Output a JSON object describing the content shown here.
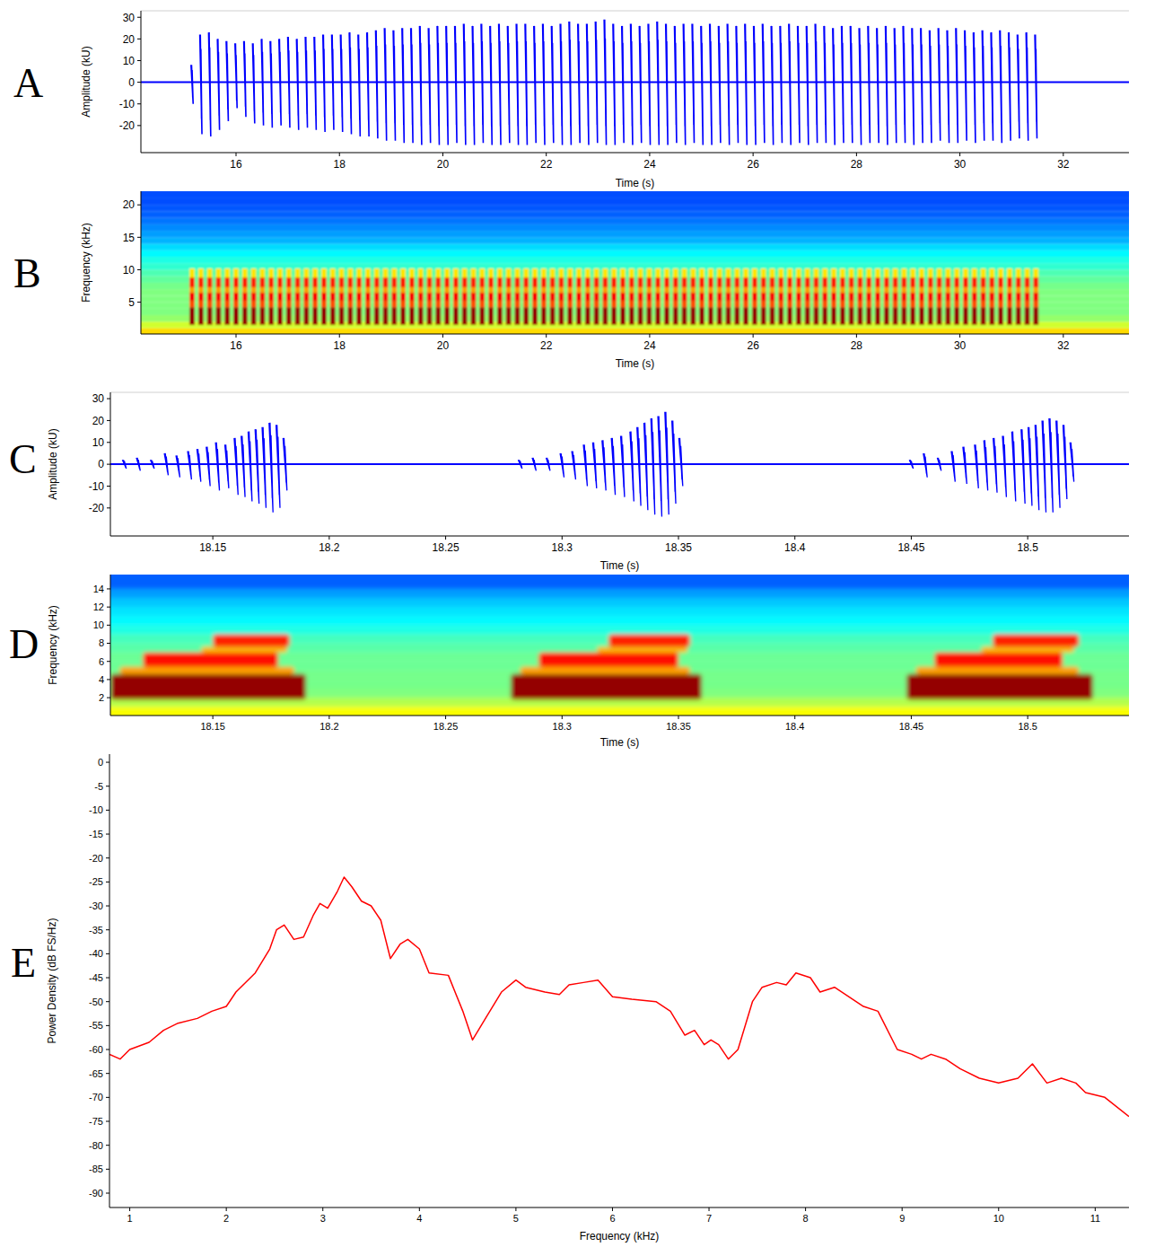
{
  "chart_data": [
    {
      "type": "waveform",
      "panel_label": "A",
      "x_label": "Time (s)",
      "y_label": "Amplitude (kU)",
      "color": "#0000ff",
      "xlim": [
        14.16,
        33.27
      ],
      "xticks": [
        16,
        18,
        20,
        22,
        24,
        26,
        28,
        30,
        32
      ],
      "ylim": [
        -32.5,
        33
      ],
      "yticks": [
        -20,
        -10,
        0,
        10,
        20,
        30
      ],
      "x": [
        15.15,
        15.32,
        15.49,
        15.66,
        15.83,
        16.0,
        16.17,
        16.34,
        16.51,
        16.68,
        16.85,
        17.02,
        17.19,
        17.36,
        17.53,
        17.7,
        17.87,
        18.04,
        18.21,
        18.38,
        18.55,
        18.72,
        18.89,
        19.06,
        19.23,
        19.4,
        19.57,
        19.74,
        19.91,
        20.08,
        20.25,
        20.42,
        20.59,
        20.76,
        20.93,
        21.1,
        21.27,
        21.44,
        21.61,
        21.78,
        21.95,
        22.12,
        22.29,
        22.46,
        22.63,
        22.8,
        22.97,
        23.14,
        23.31,
        23.48,
        23.65,
        23.82,
        23.99,
        24.16,
        24.33,
        24.5,
        24.67,
        24.84,
        25.01,
        25.18,
        25.35,
        25.52,
        25.69,
        25.86,
        26.03,
        26.2,
        26.37,
        26.54,
        26.71,
        26.88,
        27.05,
        27.22,
        27.39,
        27.56,
        27.73,
        27.9,
        28.07,
        28.24,
        28.41,
        28.58,
        28.75,
        28.92,
        29.09,
        29.26,
        29.43,
        29.6,
        29.77,
        29.94,
        30.11,
        30.28,
        30.45,
        30.62,
        30.79,
        30.96,
        31.13,
        31.3,
        31.47
      ],
      "max": [
        8,
        22,
        23,
        20,
        19,
        18,
        19,
        18,
        20,
        19,
        20,
        21,
        20,
        21,
        21,
        22,
        22,
        22,
        23,
        22,
        23,
        24,
        25,
        24,
        25,
        25,
        26,
        25,
        26,
        26,
        26,
        27,
        26,
        27,
        26,
        27,
        26,
        27,
        27,
        26,
        27,
        26,
        27,
        28,
        27,
        27,
        28,
        29,
        27,
        26,
        27,
        26,
        27,
        28,
        27,
        26,
        27,
        27,
        26,
        27,
        26,
        27,
        26,
        27,
        26,
        27,
        26,
        26,
        27,
        26,
        26,
        27,
        26,
        25,
        26,
        26,
        25,
        26,
        25,
        26,
        25,
        26,
        25,
        25,
        24,
        25,
        24,
        25,
        24,
        23,
        24,
        23,
        24,
        23,
        22,
        23,
        22
      ],
      "min": [
        -10,
        -24,
        -25,
        -22,
        -18,
        -12,
        -16,
        -19,
        -20,
        -21,
        -20,
        -21,
        -22,
        -21,
        -22,
        -23,
        -22,
        -23,
        -24,
        -25,
        -25,
        -26,
        -27,
        -27,
        -28,
        -28,
        -29,
        -28,
        -29,
        -29,
        -28,
        -29,
        -29,
        -28,
        -29,
        -29,
        -28,
        -29,
        -29,
        -28,
        -29,
        -28,
        -29,
        -29,
        -28,
        -29,
        -28,
        -29,
        -29,
        -28,
        -29,
        -28,
        -29,
        -29,
        -29,
        -28,
        -29,
        -28,
        -29,
        -29,
        -28,
        -29,
        -28,
        -29,
        -29,
        -28,
        -29,
        -28,
        -29,
        -28,
        -29,
        -28,
        -28,
        -29,
        -28,
        -28,
        -29,
        -28,
        -28,
        -29,
        -28,
        -28,
        -29,
        -28,
        -28,
        -27,
        -28,
        -28,
        -27,
        -28,
        -27,
        -27,
        -28,
        -27,
        -26,
        -27,
        -26
      ]
    },
    {
      "type": "spectrogram",
      "panel_label": "B",
      "x_label": "Time (s)",
      "y_label": "Frequency (kHz)",
      "xlim": [
        14.16,
        33.27
      ],
      "xticks": [
        16,
        18,
        20,
        22,
        24,
        26,
        28,
        30,
        32
      ],
      "ylim": [
        0.1,
        22.1
      ],
      "yticks": [
        5,
        10,
        15,
        20
      ],
      "zlim": [
        0,
        100
      ],
      "background_bins": [
        0.1,
        1,
        2,
        3,
        4,
        5,
        6,
        7,
        8,
        9,
        10,
        11,
        12,
        13,
        14,
        15,
        16,
        17,
        18,
        19,
        20,
        21,
        22.1
      ],
      "background_levels": [
        66,
        58,
        52,
        50,
        50,
        50,
        50,
        49,
        47,
        45,
        42,
        40,
        37,
        34,
        30,
        28,
        26,
        24,
        22,
        21,
        20,
        20
      ],
      "x": [
        15.15,
        15.32,
        15.49,
        15.66,
        15.83,
        16.0,
        16.17,
        16.34,
        16.51,
        16.68,
        16.85,
        17.02,
        17.19,
        17.36,
        17.53,
        17.7,
        17.87,
        18.04,
        18.21,
        18.38,
        18.55,
        18.72,
        18.89,
        19.06,
        19.23,
        19.4,
        19.57,
        19.74,
        19.91,
        20.08,
        20.25,
        20.42,
        20.59,
        20.76,
        20.93,
        21.1,
        21.27,
        21.44,
        21.61,
        21.78,
        21.95,
        22.12,
        22.29,
        22.46,
        22.63,
        22.8,
        22.97,
        23.14,
        23.31,
        23.48,
        23.65,
        23.82,
        23.99,
        24.16,
        24.33,
        24.5,
        24.67,
        24.84,
        25.01,
        25.18,
        25.35,
        25.52,
        25.69,
        25.86,
        26.03,
        26.2,
        26.37,
        26.54,
        26.71,
        26.88,
        27.05,
        27.22,
        27.39,
        27.56,
        27.73,
        27.9,
        28.07,
        28.24,
        28.41,
        28.58,
        28.75,
        28.92,
        29.09,
        29.26,
        29.43,
        29.6,
        29.77,
        29.94,
        30.11,
        30.28,
        30.45,
        30.62,
        30.79,
        30.96,
        31.13,
        31.3,
        31.47
      ],
      "duration": 0.1,
      "bands": [
        [
          1.5,
          4.2
        ],
        [
          4.2,
          5.2
        ],
        [
          5.2,
          6.5
        ],
        [
          6.5,
          7.3
        ],
        [
          7.3,
          8.8
        ],
        [
          8.8,
          10.2
        ]
      ],
      "band_levels": [
        98,
        80,
        88,
        72,
        85,
        65
      ]
    },
    {
      "type": "waveform",
      "panel_label": "C",
      "x_label": "Time (s)",
      "y_label": "Amplitude (kU)",
      "color": "#0000ff",
      "xlim": [
        18.106,
        18.5435
      ],
      "xticks": [
        18.15,
        18.2,
        18.25,
        18.3,
        18.35,
        18.4,
        18.45,
        18.5
      ],
      "ylim": [
        -32.8,
        32.9
      ],
      "yticks": [
        -20,
        -10,
        0,
        10,
        20,
        30
      ],
      "x": [
        18.112,
        18.118,
        18.124,
        18.13,
        18.135,
        18.14,
        18.144,
        18.148,
        18.152,
        18.156,
        18.16,
        18.163,
        18.166,
        18.169,
        18.172,
        18.175,
        18.178,
        18.181,
        18.282,
        18.288,
        18.294,
        18.3,
        18.305,
        18.31,
        18.314,
        18.318,
        18.322,
        18.326,
        18.33,
        18.333,
        18.336,
        18.339,
        18.342,
        18.345,
        18.348,
        18.351,
        18.45,
        18.456,
        18.462,
        18.468,
        18.473,
        18.478,
        18.482,
        18.486,
        18.49,
        18.494,
        18.498,
        18.501,
        18.504,
        18.507,
        18.51,
        18.513,
        18.516,
        18.519
      ],
      "max": [
        2,
        3,
        2,
        5,
        4,
        6,
        7,
        8,
        10,
        9,
        12,
        13,
        15,
        16,
        17,
        19,
        18,
        12,
        2,
        3,
        3,
        5,
        6,
        9,
        10,
        11,
        12,
        13,
        15,
        17,
        19,
        21,
        22,
        24,
        20,
        12,
        2,
        5,
        3,
        6,
        8,
        9,
        11,
        12,
        13,
        15,
        16,
        17,
        18,
        20,
        21,
        20,
        18,
        10
      ],
      "min": [
        -2,
        -3,
        -2,
        -5,
        -6,
        -7,
        -8,
        -10,
        -12,
        -11,
        -14,
        -15,
        -17,
        -18,
        -20,
        -22,
        -20,
        -12,
        -2,
        -3,
        -3,
        -6,
        -7,
        -10,
        -11,
        -12,
        -14,
        -15,
        -17,
        -19,
        -21,
        -23,
        -24,
        -23,
        -18,
        -10,
        -2,
        -6,
        -3,
        -8,
        -9,
        -11,
        -12,
        -13,
        -15,
        -17,
        -18,
        -19,
        -21,
        -22,
        -22,
        -20,
        -16,
        -8
      ]
    },
    {
      "type": "spectrogram",
      "panel_label": "D",
      "x_label": "Time (s)",
      "y_label": "Frequency (kHz)",
      "xlim": [
        18.106,
        18.5435
      ],
      "xticks": [
        18.15,
        18.2,
        18.25,
        18.3,
        18.35,
        18.4,
        18.45,
        18.5
      ],
      "ylim": [
        0.03,
        15.58
      ],
      "yticks": [
        2,
        4,
        6,
        8,
        10,
        12,
        14
      ],
      "zlim": [
        0,
        100
      ],
      "background_bins": [
        0.03,
        1,
        2,
        3,
        4,
        5,
        6,
        7,
        8,
        9,
        10,
        11,
        12,
        13,
        14,
        15.58
      ],
      "background_levels": [
        62,
        55,
        50,
        49,
        49,
        48,
        48,
        46,
        44,
        40,
        37,
        35,
        32,
        28,
        22
      ],
      "cells": [
        [
          18.106,
          18.19,
          1.8,
          4.6,
          98
        ],
        [
          18.11,
          18.185,
          4.6,
          5.4,
          72
        ],
        [
          18.12,
          18.178,
          5.4,
          7.0,
          86
        ],
        [
          18.145,
          18.182,
          7.0,
          7.6,
          70
        ],
        [
          18.15,
          18.183,
          7.6,
          9.0,
          84
        ],
        [
          18.278,
          18.36,
          1.8,
          4.6,
          98
        ],
        [
          18.282,
          18.355,
          4.6,
          5.4,
          72
        ],
        [
          18.29,
          18.35,
          5.4,
          7.0,
          86
        ],
        [
          18.315,
          18.354,
          7.0,
          7.6,
          70
        ],
        [
          18.32,
          18.355,
          7.6,
          9.0,
          84
        ],
        [
          18.448,
          18.528,
          1.8,
          4.6,
          98
        ],
        [
          18.452,
          18.522,
          4.6,
          5.4,
          72
        ],
        [
          18.46,
          18.515,
          5.4,
          7.0,
          86
        ],
        [
          18.48,
          18.52,
          7.0,
          7.6,
          70
        ],
        [
          18.485,
          18.522,
          7.6,
          9.0,
          84
        ]
      ]
    },
    {
      "type": "line",
      "panel_label": "E",
      "x_label": "Frequency (kHz)",
      "y_label": "Power Density (dB FS/Hz)",
      "color": "#ff0000",
      "xlim": [
        0.79,
        11.35
      ],
      "xticks": [
        1,
        2,
        3,
        4,
        5,
        6,
        7,
        8,
        9,
        10,
        11
      ],
      "ylim": [
        -93,
        1.7
      ],
      "yticks": [
        0,
        -5,
        -10,
        -15,
        -20,
        -25,
        -30,
        -35,
        -40,
        -45,
        -50,
        -55,
        -60,
        -65,
        -70,
        -75,
        -80,
        -85,
        -90
      ],
      "x": [
        0.79,
        0.9,
        1.0,
        1.2,
        1.35,
        1.5,
        1.7,
        1.85,
        2.0,
        2.1,
        2.3,
        2.45,
        2.52,
        2.6,
        2.7,
        2.8,
        2.9,
        2.97,
        3.05,
        3.15,
        3.22,
        3.3,
        3.4,
        3.5,
        3.6,
        3.7,
        3.8,
        3.88,
        4.0,
        4.1,
        4.3,
        4.45,
        4.55,
        4.7,
        4.85,
        5.0,
        5.1,
        5.3,
        5.45,
        5.55,
        5.7,
        5.85,
        6.0,
        6.2,
        6.45,
        6.6,
        6.75,
        6.85,
        6.95,
        7.02,
        7.1,
        7.2,
        7.3,
        7.45,
        7.55,
        7.7,
        7.8,
        7.9,
        8.05,
        8.15,
        8.3,
        8.45,
        8.6,
        8.75,
        8.95,
        9.1,
        9.2,
        9.3,
        9.45,
        9.6,
        9.8,
        10.0,
        10.2,
        10.35,
        10.5,
        10.65,
        10.8,
        10.9,
        11.1,
        11.35
      ],
      "values": [
        -61,
        -62,
        -60,
        -58.5,
        -56,
        -54.5,
        -53.5,
        -52,
        -51,
        -48,
        -44,
        -39,
        -35,
        -34,
        -37,
        -36.5,
        -32,
        -29.5,
        -30.5,
        -27,
        -24,
        -26,
        -29,
        -30,
        -33,
        -41,
        -38,
        -37,
        -39,
        -44,
        -44.5,
        -52,
        -58,
        -53,
        -48,
        -45.5,
        -47,
        -48,
        -48.5,
        -46.5,
        -46,
        -45.5,
        -49,
        -49.5,
        -50,
        -52,
        -57,
        -56,
        -59,
        -58,
        -59,
        -62,
        -60,
        -50,
        -47,
        -46,
        -46.5,
        -44,
        -45,
        -48,
        -47,
        -49,
        -51,
        -52,
        -60,
        -61,
        -62,
        -61,
        -62,
        -64,
        -66,
        -67,
        -66,
        -63,
        -67,
        -66,
        -67,
        -69,
        -70,
        -74
      ]
    }
  ]
}
